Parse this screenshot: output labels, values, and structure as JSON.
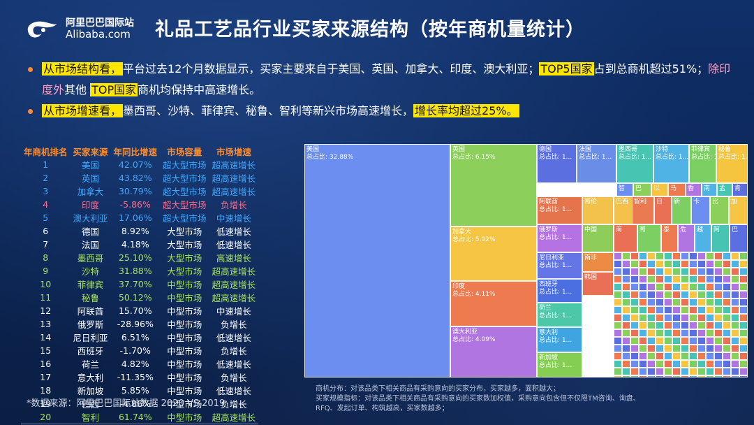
{
  "logo": {
    "cn": "阿里巴巴国际站",
    "en": "Alibaba.com"
  },
  "title": "礼品工艺品行业买家来源结构（按年商机量统计）",
  "bullets": [
    [
      {
        "t": "从市场结构看，",
        "s": "hl"
      },
      {
        "t": "平台过去12个月数据显示，买家主要来自于美国、英国、加拿大、印度、澳大利亚；",
        "s": ""
      },
      {
        "t": "TOP5国家",
        "s": "hl"
      },
      {
        "t": "占到总商机超过51%；",
        "s": ""
      },
      {
        "t": "除印度外",
        "s": "pink"
      },
      {
        "t": "其他 ",
        "s": ""
      },
      {
        "t": "TOP国家",
        "s": "hl"
      },
      {
        "t": "商机均保持中高速增长。",
        "s": ""
      }
    ],
    [
      {
        "t": "从市场增速看，",
        "s": "hl"
      },
      {
        "t": "墨西哥、沙特、菲律宾、秘鲁、智利等新兴市场高速增长，",
        "s": ""
      },
      {
        "t": "增长率均超过25%。",
        "s": "hl"
      }
    ]
  ],
  "table": {
    "headers": [
      "年商机排名",
      "买家来源",
      "年同比增速",
      "市场容量",
      "市场增速"
    ],
    "rows": [
      [
        "1",
        "美国",
        "42.07%",
        "超大型市场",
        "超高速增长"
      ],
      [
        "2",
        "英国",
        "43.82%",
        "超大型市场",
        "超高速增长"
      ],
      [
        "3",
        "加拿大",
        "30.79%",
        "超大型市场",
        "超高速增长"
      ],
      [
        "4",
        "印度",
        "-5.86%",
        "超大型市场",
        "负增长"
      ],
      [
        "5",
        "澳大利亚",
        "17.06%",
        "超大型市场",
        "中速增长"
      ],
      [
        "6",
        "德国",
        "8.92%",
        "大型市场",
        "低速增长"
      ],
      [
        "7",
        "法国",
        "4.18%",
        "大型市场",
        "低速增长"
      ],
      [
        "8",
        "墨西哥",
        "25.10%",
        "大型市场",
        "高速增长"
      ],
      [
        "9",
        "沙特",
        "31.88%",
        "大型市场",
        "超高速增长"
      ],
      [
        "10",
        "菲律宾",
        "37.70%",
        "中型市场",
        "超高速增长"
      ],
      [
        "11",
        "秘鲁",
        "50.12%",
        "中型市场",
        "超高速增长"
      ],
      [
        "12",
        "阿联酋",
        "15.70%",
        "中型市场",
        "中速增长"
      ],
      [
        "13",
        "俄罗斯",
        "-28.96%",
        "中型市场",
        "负增长"
      ],
      [
        "14",
        "尼日利亚",
        "6.51%",
        "中型市场",
        "低速增长"
      ],
      [
        "15",
        "西班牙",
        "-1.70%",
        "中型市场",
        "负增长"
      ],
      [
        "16",
        "荷兰",
        "4.82%",
        "中型市场",
        "低速增长"
      ],
      [
        "17",
        "意大利",
        "-11.35%",
        "中型市场",
        "负增长"
      ],
      [
        "18",
        "新加坡",
        "5.85%",
        "中型市场",
        "低速增长"
      ],
      [
        "19",
        "巴西",
        "-4.86%",
        "中型市场",
        "负增长"
      ],
      [
        "20",
        "智利",
        "61.74%",
        "中型市场",
        "超高速增长"
      ]
    ],
    "row_colors": [
      "#3fa9ff",
      "#3fa9ff",
      "#3fa9ff",
      "#ff6b8b",
      "#3fa9ff",
      "#ffffff",
      "#ffffff",
      "#a6e35b",
      "#a6e35b",
      "#a6e35b",
      "#a6e35b",
      "#ffffff",
      "#ffffff",
      "#ffffff",
      "#ffffff",
      "#ffffff",
      "#ffffff",
      "#ffffff",
      "#ffffff",
      "#a6e35b"
    ]
  },
  "source_note": "*数据来源：阿里巴巴国际站数据 2020 VS 2019",
  "notes": [
    "商机分布：对该品类下相关商品有采购意向的买家分布，买家越多，面积越大；",
    "买家规模指标：对该品类下相关商品有采购意向的买家数加权值，采购意向包含但不仅限TM咨询、询盘、RFQ、发起订单、构筑越高，买家数越多；"
  ],
  "treemap": {
    "cells": [
      {
        "name": "美国",
        "share": "总占比: 32.88%",
        "color": "#6b8ef0"
      },
      {
        "name": "英国",
        "share": "总占比: 6.15%",
        "color": "#8ccf5a"
      },
      {
        "name": "加拿大",
        "share": "总占比: 5.02%",
        "color": "#f6c544"
      },
      {
        "name": "印度",
        "share": "总占比: 4.11%",
        "color": "#ee7a4f"
      },
      {
        "name": "澳大利亚",
        "share": "总占比: 4.09%",
        "color": "#b075e0"
      },
      {
        "name": "德国",
        "share": "总占比: 1...",
        "color": "#5b6fe0"
      },
      {
        "name": "法国",
        "share": "总占比: 1...",
        "color": "#6a8ee8"
      },
      {
        "name": "墨西哥",
        "share": "总占比: 1...",
        "color": "#48c4b3"
      },
      {
        "name": "沙特",
        "share": "总占比: 1...",
        "color": "#4fb3e6"
      },
      {
        "name": "菲律宾",
        "share": "总占比: 1...",
        "color": "#7ccf63"
      },
      {
        "name": "秘鲁",
        "share": "总占比: 1...",
        "color": "#f5c53f"
      },
      {
        "name": "阿联酋",
        "share": "总占比: 1...",
        "color": "#e5744c"
      },
      {
        "name": "俄罗斯",
        "share": "总占比: 1...",
        "color": "#b472e2"
      },
      {
        "name": "尼日利亚",
        "share": "总占比: 1...",
        "color": "#6476e6"
      },
      {
        "name": "西班牙",
        "share": "总占比: 1...",
        "color": "#4b6ee0"
      },
      {
        "name": "荷兰",
        "share": "总占比: 1...",
        "color": "#4cc7a7"
      },
      {
        "name": "意大利",
        "share": "总占比: 1...",
        "color": "#3fa4e0"
      },
      {
        "name": "新加坡",
        "share": "总占比: 1...",
        "color": "#84cf52"
      },
      {
        "name": "巴西",
        "share": "",
        "color": "#f4c24a"
      },
      {
        "name": "智利",
        "share": "",
        "color": "#ea7a52"
      },
      {
        "name": "南非",
        "share": "",
        "color": "#ec8c44"
      },
      {
        "name": "韩国",
        "share": "",
        "color": "#e96f55"
      },
      {
        "name": "中国",
        "share": "",
        "color": "#8fcd5b"
      },
      {
        "name": "哥伦",
        "share": "",
        "color": "#f2c24a"
      }
    ],
    "tiny_labels": [
      "智",
      "巴",
      "以",
      "马",
      "香",
      "南",
      "孟",
      "肯",
      "日",
      "新",
      "卡",
      "比",
      "加",
      "泰",
      "危",
      "越",
      "阿",
      "巴",
      "南",
      "哥"
    ],
    "tiny_colors": [
      "#6b8ef0",
      "#8ccf5a",
      "#f6c544",
      "#ee7a4f",
      "#b075e0",
      "#4fb3e6",
      "#48c4b3",
      "#5b6fe0",
      "#e96f55",
      "#7ccf63"
    ]
  }
}
